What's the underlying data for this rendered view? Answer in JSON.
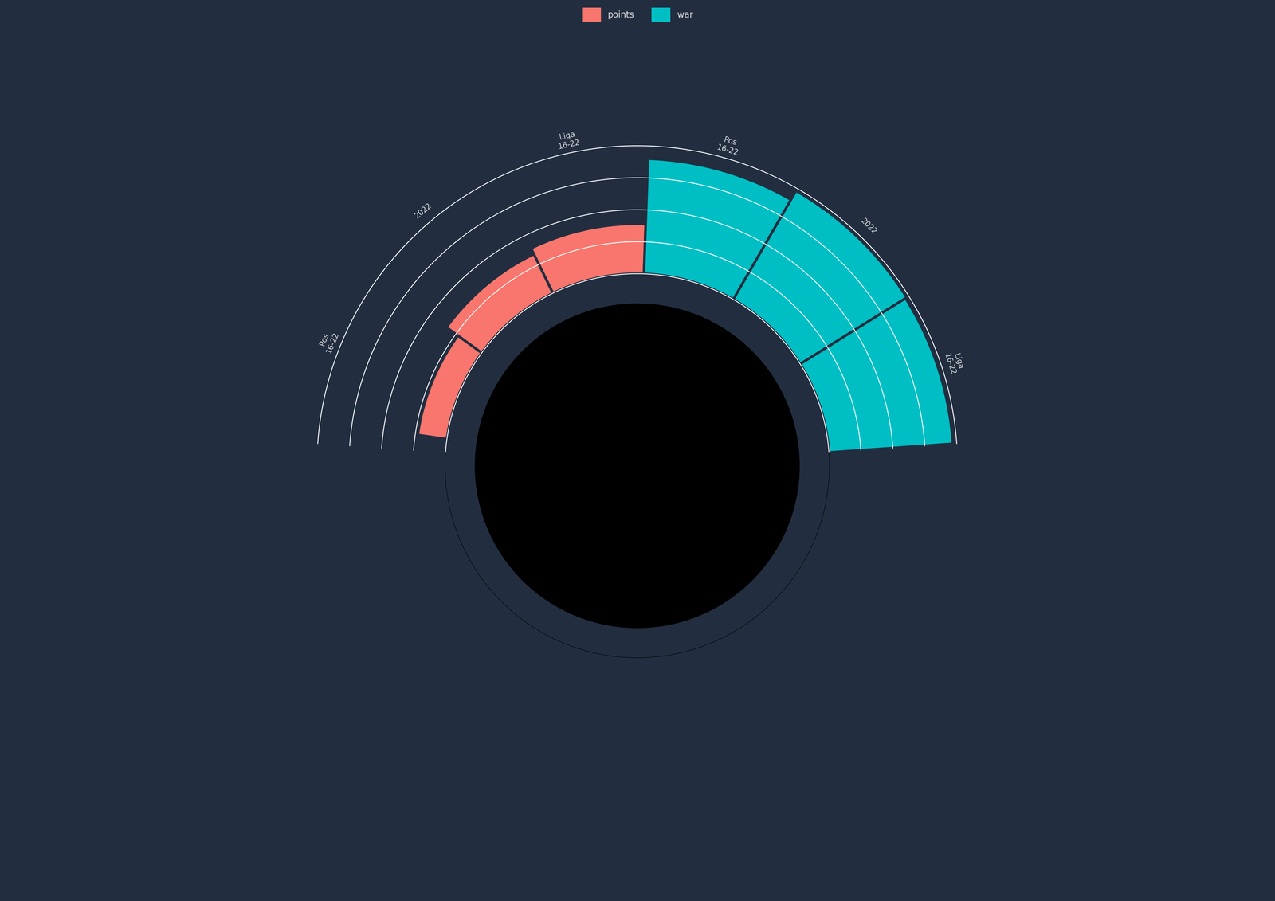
{
  "chart_data": {
    "type": "polar",
    "categories": [
      "Pos\n16-22",
      "2022",
      "Liga\n16-22",
      "Pos\n16-22",
      "2022",
      "Liga\n16-22"
    ],
    "series": [
      {
        "name": "points",
        "color": "#F8766D",
        "values": [
          23,
          34,
          39,
          null,
          null,
          null
        ]
      },
      {
        "name": "war",
        "color": "#00BFC4",
        "values": [
          null,
          null,
          null,
          90,
          98,
          97
        ]
      }
    ],
    "ylim": [
      0,
      100
    ],
    "yticks": [
      0,
      25,
      50,
      75,
      100
    ],
    "grid": true,
    "legend": "upper center",
    "tick_labels": "x"
  }
}
